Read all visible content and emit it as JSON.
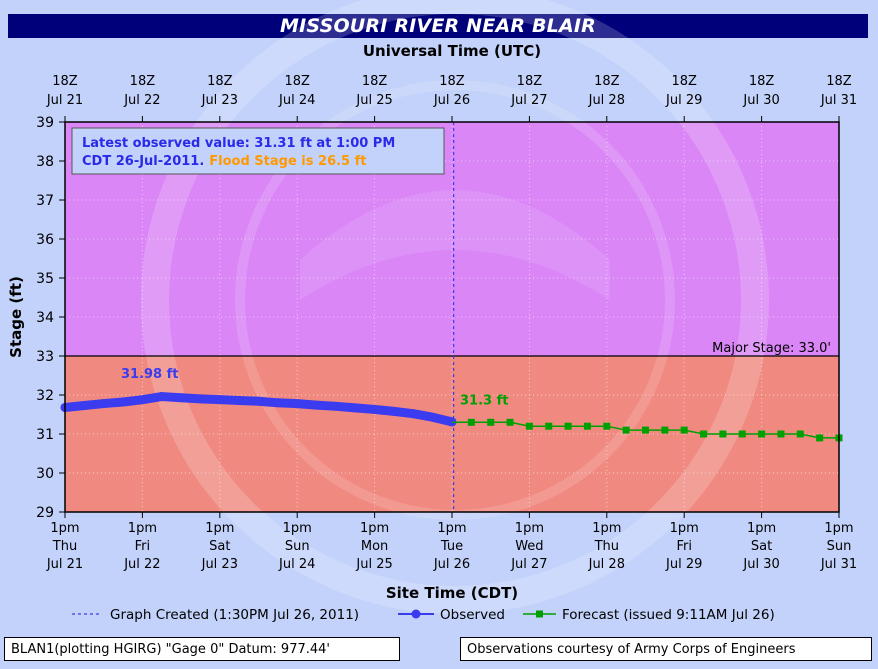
{
  "title": "MISSOURI RIVER NEAR BLAIR",
  "footer": {
    "left": "BLAN1(plotting HGIRG) \"Gage 0\" Datum: 977.44'",
    "right": "Observations courtesy of Army Corps of Engineers"
  },
  "chart_data": {
    "type": "line",
    "top_axis_title": "Universal Time (UTC)",
    "xlabel": "Site Time (CDT)",
    "ylabel": "Stage (ft)",
    "ylim": [
      29,
      39
    ],
    "xlim_days": [
      "Jul 21",
      "Jul 31"
    ],
    "yticks": [
      "29",
      "30",
      "31",
      "32",
      "33",
      "34",
      "35",
      "36",
      "37",
      "38",
      "39"
    ],
    "top_ticks": [
      {
        "time": "18Z",
        "date": "Jul 21"
      },
      {
        "time": "18Z",
        "date": "Jul 22"
      },
      {
        "time": "18Z",
        "date": "Jul 23"
      },
      {
        "time": "18Z",
        "date": "Jul 24"
      },
      {
        "time": "18Z",
        "date": "Jul 25"
      },
      {
        "time": "18Z",
        "date": "Jul 26"
      },
      {
        "time": "18Z",
        "date": "Jul 27"
      },
      {
        "time": "18Z",
        "date": "Jul 28"
      },
      {
        "time": "18Z",
        "date": "Jul 29"
      },
      {
        "time": "18Z",
        "date": "Jul 30"
      },
      {
        "time": "18Z",
        "date": "Jul 31"
      }
    ],
    "bottom_ticks": [
      {
        "time": "1pm",
        "day": "Thu",
        "date": "Jul 21"
      },
      {
        "time": "1pm",
        "day": "Fri",
        "date": "Jul 22"
      },
      {
        "time": "1pm",
        "day": "Sat",
        "date": "Jul 23"
      },
      {
        "time": "1pm",
        "day": "Sun",
        "date": "Jul 24"
      },
      {
        "time": "1pm",
        "day": "Mon",
        "date": "Jul 25"
      },
      {
        "time": "1pm",
        "day": "Tue",
        "date": "Jul 26"
      },
      {
        "time": "1pm",
        "day": "Wed",
        "date": "Jul 27"
      },
      {
        "time": "1pm",
        "day": "Thu",
        "date": "Jul 28"
      },
      {
        "time": "1pm",
        "day": "Fri",
        "date": "Jul 29"
      },
      {
        "time": "1pm",
        "day": "Sat",
        "date": "Jul 30"
      },
      {
        "time": "1pm",
        "day": "Sun",
        "date": "Jul 31"
      }
    ],
    "bands": [
      {
        "from": 29,
        "to": 33,
        "color": "#f08a80"
      },
      {
        "from": 33,
        "to": 39,
        "color": "#da86f6"
      }
    ],
    "threshold": {
      "value": 33.0,
      "label": "Major Stage: 33.0'"
    },
    "created_marker_day": 5.0208,
    "info_box": {
      "line1": "Latest observed value: 31.31 ft at 1:00 PM",
      "line2a": "CDT 26-Jul-2011.",
      "line2b": "Flood Stage is 26.5 ft"
    },
    "series": [
      {
        "name": "Observed",
        "color": "#3b3bf0",
        "max_label": "31.98 ft",
        "max_point": {
          "day": 1.25,
          "value": 31.98
        },
        "points": [
          {
            "day": 0.0,
            "value": 31.68
          },
          {
            "day": 0.25,
            "value": 31.73
          },
          {
            "day": 0.5,
            "value": 31.78
          },
          {
            "day": 0.75,
            "value": 31.82
          },
          {
            "day": 1.0,
            "value": 31.88
          },
          {
            "day": 1.25,
            "value": 31.96
          },
          {
            "day": 1.5,
            "value": 31.93
          },
          {
            "day": 1.75,
            "value": 31.9
          },
          {
            "day": 2.0,
            "value": 31.88
          },
          {
            "day": 2.25,
            "value": 31.86
          },
          {
            "day": 2.5,
            "value": 31.84
          },
          {
            "day": 2.75,
            "value": 31.8
          },
          {
            "day": 3.0,
            "value": 31.78
          },
          {
            "day": 3.25,
            "value": 31.74
          },
          {
            "day": 3.5,
            "value": 31.71
          },
          {
            "day": 3.75,
            "value": 31.67
          },
          {
            "day": 4.0,
            "value": 31.63
          },
          {
            "day": 4.25,
            "value": 31.58
          },
          {
            "day": 4.5,
            "value": 31.52
          },
          {
            "day": 4.75,
            "value": 31.43
          },
          {
            "day": 5.0,
            "value": 31.31
          }
        ]
      },
      {
        "name": "Forecast",
        "color": "#00a000",
        "start_label": "31.3 ft",
        "points": [
          {
            "day": 5.0,
            "value": 31.3
          },
          {
            "day": 5.25,
            "value": 31.3
          },
          {
            "day": 5.5,
            "value": 31.3
          },
          {
            "day": 5.75,
            "value": 31.3
          },
          {
            "day": 6.0,
            "value": 31.2
          },
          {
            "day": 6.25,
            "value": 31.2
          },
          {
            "day": 6.5,
            "value": 31.2
          },
          {
            "day": 6.75,
            "value": 31.2
          },
          {
            "day": 7.0,
            "value": 31.2
          },
          {
            "day": 7.25,
            "value": 31.1
          },
          {
            "day": 7.5,
            "value": 31.1
          },
          {
            "day": 7.75,
            "value": 31.1
          },
          {
            "day": 8.0,
            "value": 31.1
          },
          {
            "day": 8.25,
            "value": 31.0
          },
          {
            "day": 8.5,
            "value": 31.0
          },
          {
            "day": 8.75,
            "value": 31.0
          },
          {
            "day": 9.0,
            "value": 31.0
          },
          {
            "day": 9.25,
            "value": 31.0
          },
          {
            "day": 9.5,
            "value": 31.0
          },
          {
            "day": 9.75,
            "value": 30.9
          },
          {
            "day": 10.0,
            "value": 30.9
          }
        ]
      }
    ],
    "legend": {
      "created": "Graph Created (1:30PM Jul 26, 2011)",
      "observed": "Observed",
      "forecast": "Forecast (issued 9:11AM Jul 26)"
    }
  }
}
